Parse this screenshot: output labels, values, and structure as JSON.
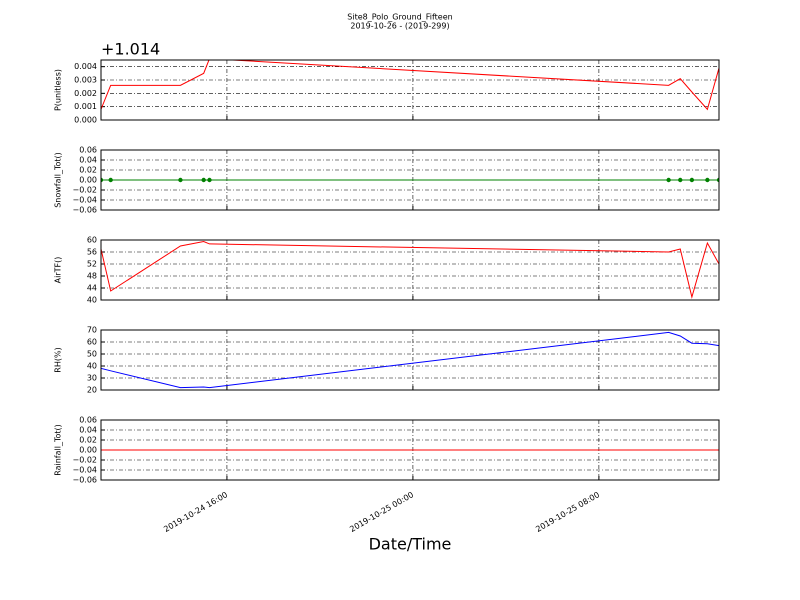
{
  "title": "Site8_Polo_Ground_Fifteen",
  "subtitle": "2019-10-26 - (2019-299)",
  "xlabel": "Date/Time",
  "chart_data": [
    {
      "type": "line",
      "ylabel": "P(unitless)",
      "offset_label": "+1.014",
      "color": "#ff0000",
      "grid": true,
      "x": [
        "2019-10-24 10:35",
        "2019-10-24 11:00",
        "2019-10-24 14:00",
        "2019-10-24 15:00",
        "2019-10-24 15:15",
        "2019-10-25 11:00",
        "2019-10-25 11:30",
        "2019-10-25 12:00",
        "2019-10-25 12:40",
        "2019-10-25 13:10"
      ],
      "values": [
        0.0008,
        0.0026,
        0.0026,
        0.0035,
        0.0046,
        0.0026,
        0.0031,
        0.0021,
        0.0008,
        0.0039
      ],
      "xlim": [
        "2019-10-24 10:35",
        "2019-10-25 13:10"
      ],
      "xticks": [
        "2019-10-24 16:00",
        "2019-10-25 00:00",
        "2019-10-25 08:00"
      ],
      "ylim": [
        0,
        0.0045
      ],
      "yticks": [
        {
          "value": 0,
          "label": "0.000"
        },
        {
          "value": 0.001,
          "label": "0.001"
        },
        {
          "value": 0.002,
          "label": "0.002"
        },
        {
          "value": 0.003,
          "label": "0.003"
        },
        {
          "value": 0.004,
          "label": "0.004"
        }
      ]
    },
    {
      "type": "line",
      "ylabel": "Snowfall_Tot()",
      "color": "#008000",
      "markers": true,
      "grid": true,
      "x": [
        "2019-10-24 10:35",
        "2019-10-24 11:00",
        "2019-10-24 14:00",
        "2019-10-24 15:00",
        "2019-10-24 15:15",
        "2019-10-25 11:00",
        "2019-10-25 11:30",
        "2019-10-25 12:00",
        "2019-10-25 12:40",
        "2019-10-25 13:10"
      ],
      "values": [
        0,
        0,
        0,
        0,
        0,
        0,
        0,
        0,
        0,
        0
      ],
      "xlim": [
        "2019-10-24 10:35",
        "2019-10-25 13:10"
      ],
      "xticks": [
        "2019-10-24 16:00",
        "2019-10-25 00:00",
        "2019-10-25 08:00"
      ],
      "ylim": [
        -0.06,
        0.06
      ],
      "yticks": [
        {
          "value": -0.06,
          "label": "−0.06"
        },
        {
          "value": -0.04,
          "label": "−0.04"
        },
        {
          "value": -0.02,
          "label": "−0.02"
        },
        {
          "value": 0,
          "label": "0.00"
        },
        {
          "value": 0.02,
          "label": "0.02"
        },
        {
          "value": 0.04,
          "label": "0.04"
        },
        {
          "value": 0.06,
          "label": "0.06"
        }
      ]
    },
    {
      "type": "line",
      "ylabel": "AirTF()",
      "color": "#ff0000",
      "grid": true,
      "x": [
        "2019-10-24 10:35",
        "2019-10-24 11:00",
        "2019-10-24 14:00",
        "2019-10-24 15:00",
        "2019-10-24 15:15",
        "2019-10-25 11:00",
        "2019-10-25 11:30",
        "2019-10-25 12:00",
        "2019-10-25 12:40",
        "2019-10-25 13:10"
      ],
      "values": [
        57,
        43,
        58,
        59.5,
        58.7,
        56,
        57,
        41,
        59,
        52
      ],
      "xlim": [
        "2019-10-24 10:35",
        "2019-10-25 13:10"
      ],
      "xticks": [
        "2019-10-24 16:00",
        "2019-10-25 00:00",
        "2019-10-25 08:00"
      ],
      "ylim": [
        40,
        60
      ],
      "yticks": [
        40,
        44,
        48,
        52,
        56,
        60
      ]
    },
    {
      "type": "line",
      "ylabel": "RH(%)",
      "color": "#0000ff",
      "grid": true,
      "x": [
        "2019-10-24 10:35",
        "2019-10-24 11:00",
        "2019-10-24 14:00",
        "2019-10-24 15:00",
        "2019-10-24 15:15",
        "2019-10-25 11:00",
        "2019-10-25 11:30",
        "2019-10-25 12:00",
        "2019-10-25 12:40",
        "2019-10-25 13:10"
      ],
      "values": [
        38,
        36,
        22,
        22.5,
        22,
        68,
        65,
        59,
        58.5,
        57
      ],
      "xlim": [
        "2019-10-24 10:35",
        "2019-10-25 13:10"
      ],
      "xticks": [
        "2019-10-24 16:00",
        "2019-10-25 00:00",
        "2019-10-25 08:00"
      ],
      "ylim": [
        20,
        70
      ],
      "yticks": [
        20,
        30,
        40,
        50,
        60,
        70
      ]
    },
    {
      "type": "line",
      "ylabel": "Rainfall_Tot()",
      "color": "#ff0000",
      "grid": true,
      "show_xtick_labels": true,
      "x": [
        "2019-10-24 10:35",
        "2019-10-24 11:00",
        "2019-10-24 14:00",
        "2019-10-24 15:00",
        "2019-10-24 15:15",
        "2019-10-25 11:00",
        "2019-10-25 11:30",
        "2019-10-25 12:00",
        "2019-10-25 12:40",
        "2019-10-25 13:10"
      ],
      "values": [
        0,
        0,
        0,
        0,
        0,
        0,
        0,
        0,
        0,
        0
      ],
      "xlim": [
        "2019-10-24 10:35",
        "2019-10-25 13:10"
      ],
      "xticks": [
        "2019-10-24 16:00",
        "2019-10-25 00:00",
        "2019-10-25 08:00"
      ],
      "ylim": [
        -0.06,
        0.06
      ],
      "yticks": [
        {
          "value": -0.06,
          "label": "−0.06"
        },
        {
          "value": -0.04,
          "label": "−0.04"
        },
        {
          "value": -0.02,
          "label": "−0.02"
        },
        {
          "value": 0,
          "label": "0.00"
        },
        {
          "value": 0.02,
          "label": "0.02"
        },
        {
          "value": 0.04,
          "label": "0.04"
        },
        {
          "value": 0.06,
          "label": "0.06"
        }
      ]
    }
  ]
}
